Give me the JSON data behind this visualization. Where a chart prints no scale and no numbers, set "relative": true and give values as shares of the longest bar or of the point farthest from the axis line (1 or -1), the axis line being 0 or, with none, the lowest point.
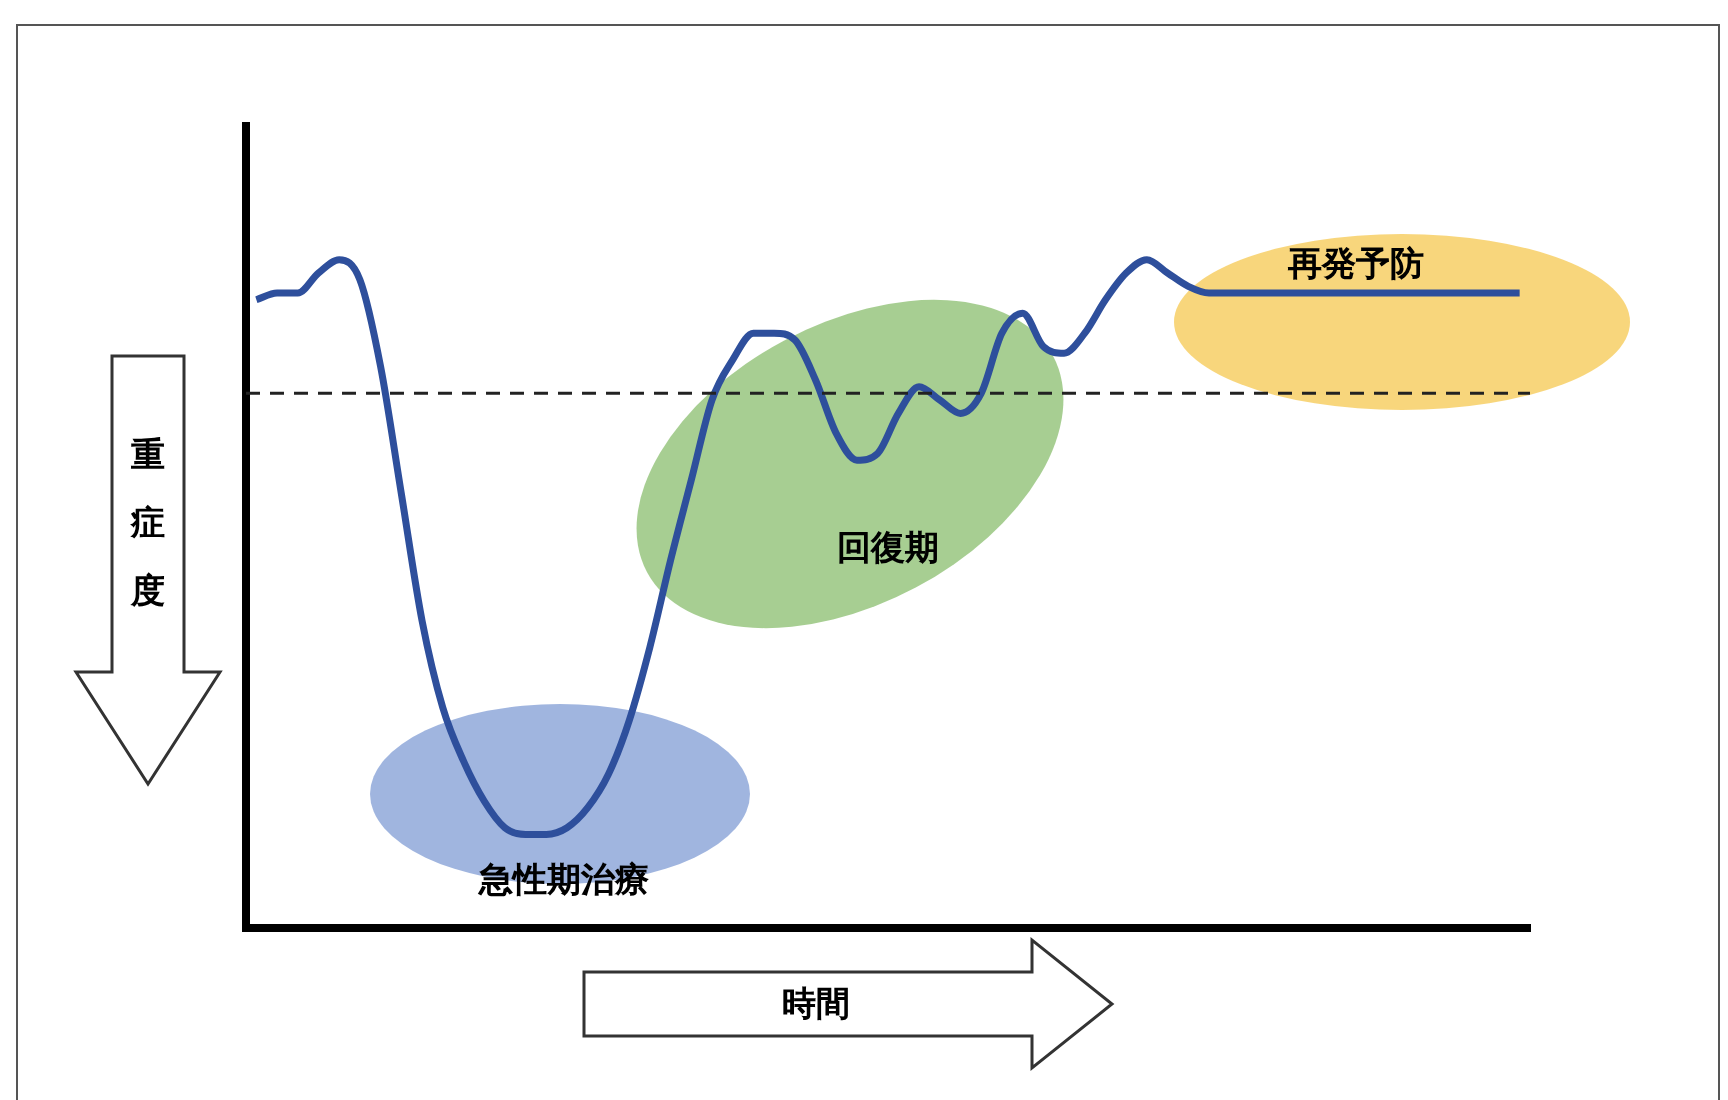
{
  "chart_data": {
    "type": "line",
    "relative": true,
    "xlabel": "時間",
    "ylabel": "重症度",
    "categories": [
      null,
      null,
      null,
      null,
      null,
      null,
      null,
      null,
      null,
      null,
      null,
      null,
      null,
      null,
      null,
      null,
      null,
      null,
      null,
      null,
      null,
      null,
      null,
      null,
      null,
      null,
      null,
      null,
      null,
      null,
      null,
      null,
      null,
      null,
      null,
      null,
      null,
      null,
      null,
      null,
      null,
      null,
      null,
      null,
      null,
      null,
      null,
      null,
      null,
      null,
      null,
      null,
      null,
      null,
      null,
      null,
      null,
      null,
      null,
      null,
      null,
      null
    ],
    "series": [
      {
        "color": "#2e4f9c",
        "values": [
          0.94,
          0.95,
          0.95,
          0.98,
          1,
          0.97,
          0.84,
          0.65,
          0.46,
          0.33,
          0.25,
          0.19,
          0.15,
          0.14,
          0.14,
          0.15,
          0.18,
          0.23,
          0.31,
          0.42,
          0.55,
          0.67,
          0.79,
          0.85,
          0.89,
          0.89,
          0.88,
          0.82,
          0.74,
          0.7,
          0.71,
          0.77,
          0.81,
          0.79,
          0.77,
          0.8,
          0.89,
          0.92,
          0.87,
          0.86,
          0.89,
          0.94,
          0.98,
          1,
          0.98,
          0.96,
          0.95,
          0.95,
          0.95,
          0.95,
          0.95,
          0.95,
          0.95,
          0.95,
          0.95,
          0.95,
          0.95,
          0.95,
          0.95,
          0.95,
          0.95,
          0.95
        ]
      }
    ],
    "ref_lines": [
      {
        "axis": "y",
        "value": 0.8,
        "color": "#222222",
        "line_style": "dashed"
      }
    ],
    "annotations": [
      "急性期治療",
      "回復期",
      "再発予防"
    ],
    "marker": "none",
    "line_style": "solid",
    "grid": false,
    "legend": false
  }
}
